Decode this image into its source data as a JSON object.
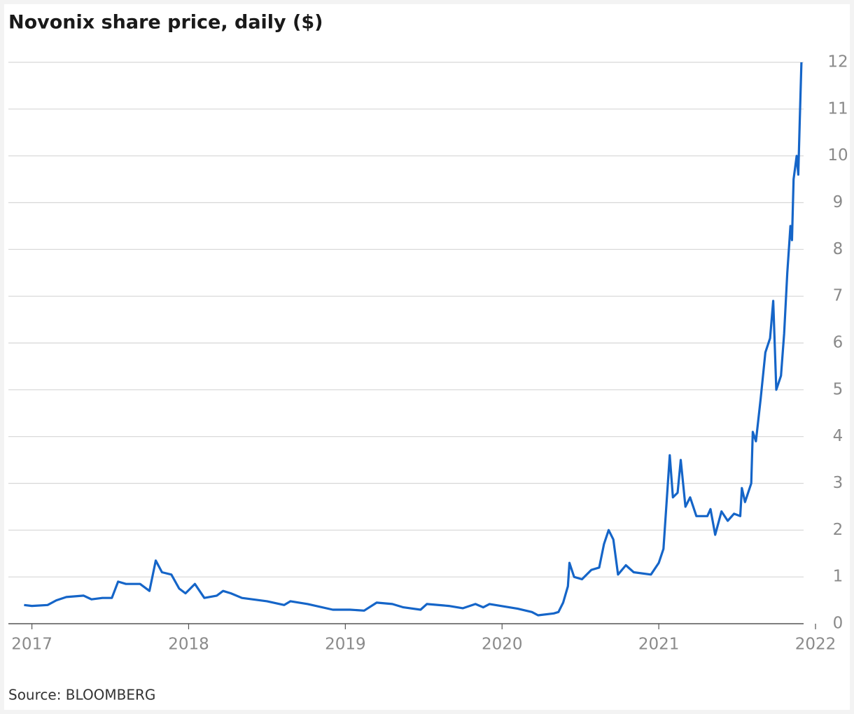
{
  "chart_data": {
    "type": "line",
    "title": "Novonix share price, daily ($)",
    "source": "Source: BLOOMBERG",
    "x": [
      2016.95,
      2017.0,
      2017.1,
      2017.156,
      2017.22,
      2017.33,
      2017.38,
      2017.45,
      2017.51,
      2017.55,
      2017.6,
      2017.69,
      2017.75,
      2017.79,
      2017.83,
      2017.89,
      2017.94,
      2017.98,
      2018.04,
      2018.1,
      2018.18,
      2018.22,
      2018.27,
      2018.34,
      2018.5,
      2018.61,
      2018.65,
      2018.76,
      2018.92,
      2019.03,
      2019.12,
      2019.2,
      2019.3,
      2019.37,
      2019.48,
      2019.52,
      2019.66,
      2019.75,
      2019.83,
      2019.88,
      2019.92,
      2020.1,
      2020.19,
      2020.23,
      2020.33,
      2020.36,
      2020.39,
      2020.42,
      2020.43,
      2020.46,
      2020.51,
      2020.57,
      2020.62,
      2020.65,
      2020.68,
      2020.71,
      2020.74,
      2020.79,
      2020.84,
      2020.95,
      2021.0,
      2021.03,
      2021.07,
      2021.09,
      2021.12,
      2021.14,
      2021.17,
      2021.2,
      2021.24,
      2021.31,
      2021.33,
      2021.36,
      2021.4,
      2021.44,
      2021.48,
      2021.52,
      2021.53,
      2021.55,
      2021.59,
      2021.6,
      2021.62,
      2021.65,
      2021.68,
      2021.71,
      2021.73,
      2021.75,
      2021.78,
      2021.8,
      2021.82,
      2021.84,
      2021.85,
      2021.86,
      2021.88,
      2021.89,
      2021.9,
      2021.91
    ],
    "series": [
      {
        "name": "Novonix",
        "color": "#1565c8",
        "values": [
          0.4,
          0.38,
          0.4,
          0.5,
          0.57,
          0.6,
          0.52,
          0.55,
          0.55,
          0.9,
          0.85,
          0.85,
          0.7,
          1.35,
          1.1,
          1.05,
          0.75,
          0.65,
          0.85,
          0.55,
          0.6,
          0.7,
          0.65,
          0.55,
          0.48,
          0.4,
          0.48,
          0.42,
          0.3,
          0.3,
          0.28,
          0.45,
          0.42,
          0.35,
          0.3,
          0.42,
          0.38,
          0.33,
          0.42,
          0.35,
          0.42,
          0.32,
          0.25,
          0.18,
          0.22,
          0.25,
          0.45,
          0.8,
          1.3,
          1.0,
          0.95,
          1.15,
          1.2,
          1.7,
          2.0,
          1.8,
          1.05,
          1.25,
          1.1,
          1.05,
          1.3,
          1.6,
          3.6,
          2.7,
          2.8,
          3.5,
          2.5,
          2.7,
          2.3,
          2.3,
          2.45,
          1.9,
          2.4,
          2.2,
          2.35,
          2.3,
          2.9,
          2.6,
          3.0,
          4.1,
          3.9,
          4.8,
          5.8,
          6.1,
          6.9,
          5.0,
          5.3,
          6.2,
          7.5,
          8.5,
          8.2,
          9.5,
          10.0,
          9.6,
          10.8,
          12.0
        ]
      }
    ],
    "xlim": [
      2016.85,
      2022
    ],
    "xticks": [
      2017,
      2018,
      2019,
      2020,
      2021,
      2022
    ],
    "ylim": [
      0,
      12
    ],
    "yticks": [
      0,
      1,
      2,
      3,
      4,
      5,
      6,
      7,
      8,
      9,
      10,
      11,
      12
    ],
    "grid": true
  }
}
